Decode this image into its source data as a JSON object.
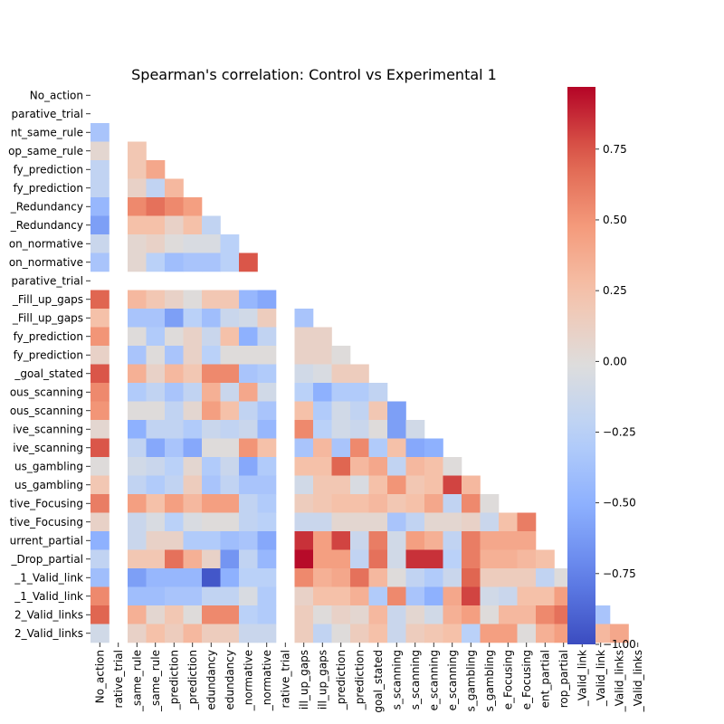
{
  "chart_data": {
    "type": "heatmap",
    "title": "Spearman's correlation: Control vs Experimental 1",
    "mask": "upper-triangle-including-diagonal",
    "colormap": "coolwarm",
    "vmin": -1.0,
    "vmax": 0.97,
    "row_labels": [
      "No_action",
      "parative_trial",
      "nt_same_rule",
      "op_same_rule",
      "fy_prediction",
      "fy_prediction",
      "_Redundancy",
      "_Redundancy",
      "on_normative",
      "on_normative",
      "parative_trial",
      "_Fill_up_gaps",
      "_Fill_up_gaps",
      "fy_prediction",
      "fy_prediction",
      "_goal_stated",
      "ous_scanning",
      "ous_scanning",
      "ive_scanning",
      "ive_scanning",
      "us_gambling",
      "us_gambling",
      "tive_Focusing",
      "tive_Focusing",
      "urrent_partial",
      "_Drop_partial",
      "_1_Valid_link",
      "_1_Valid_link",
      "2_Valid_links",
      "2_Valid_links"
    ],
    "col_labels": [
      "No_action",
      "rative_trial",
      "_same_rule",
      "_same_rule",
      "_prediction",
      "_prediction",
      "edundancy",
      "edundancy",
      "_normative",
      "_normative",
      "rative_trial",
      "ill_up_gaps",
      "ill_up_gaps",
      "_prediction",
      "_prediction",
      "goal_stated",
      "s_scanning",
      "s_scanning",
      "e_scanning",
      "e_scanning",
      "s_gambling",
      "s_gambling",
      "e_Focusing",
      "e_Focusing",
      "ent_partial",
      "rop_partial",
      "_Valid_link",
      "_Valid_link",
      "_Valid_links",
      "_Valid_links"
    ],
    "colorbar": {
      "ticks": [
        0.75,
        0.5,
        0.25,
        0.0,
        -0.25,
        -0.5,
        -0.75,
        -1.0
      ],
      "tick_labels": [
        "0.75",
        "0.50",
        "0.25",
        "0.00",
        "−0.25",
        "−0.50",
        "−0.75",
        "−1.00"
      ]
    },
    "matrix": [
      [],
      [
        null
      ],
      [
        -0.35,
        null
      ],
      [
        0.05,
        null,
        0.2
      ],
      [
        -0.2,
        null,
        0.2,
        0.4
      ],
      [
        -0.2,
        null,
        0.1,
        -0.2,
        0.3
      ],
      [
        -0.45,
        null,
        0.55,
        0.65,
        0.55,
        0.45
      ],
      [
        -0.6,
        null,
        0.25,
        0.25,
        0.1,
        0.25,
        -0.2
      ],
      [
        -0.15,
        null,
        0.05,
        0.1,
        0.0,
        -0.05,
        -0.05,
        -0.25
      ],
      [
        -0.35,
        null,
        0.05,
        -0.25,
        -0.4,
        -0.35,
        -0.35,
        -0.25,
        0.75
      ],
      [
        null,
        null,
        null,
        null,
        null,
        null,
        null,
        null,
        null,
        null
      ],
      [
        0.7,
        null,
        0.3,
        0.2,
        0.1,
        0.0,
        0.2,
        0.2,
        -0.45,
        -0.55,
        null
      ],
      [
        0.25,
        null,
        -0.35,
        -0.35,
        -0.6,
        -0.25,
        -0.4,
        -0.15,
        -0.1,
        0.15,
        null,
        -0.35
      ],
      [
        0.5,
        null,
        0.0,
        -0.3,
        0.0,
        0.1,
        -0.15,
        0.25,
        -0.5,
        -0.2,
        null,
        0.1,
        0.1
      ],
      [
        0.1,
        null,
        -0.35,
        0.0,
        -0.35,
        0.1,
        -0.25,
        0.0,
        0.0,
        0.0,
        null,
        0.1,
        0.1,
        0.0
      ],
      [
        0.75,
        null,
        0.35,
        0.1,
        0.3,
        0.2,
        0.55,
        0.55,
        -0.35,
        -0.3,
        null,
        -0.1,
        -0.05,
        0.15,
        0.15
      ],
      [
        0.55,
        null,
        -0.3,
        -0.2,
        -0.35,
        -0.2,
        0.35,
        -0.15,
        0.4,
        -0.1,
        null,
        -0.25,
        -0.5,
        -0.3,
        -0.3,
        -0.2
      ],
      [
        0.5,
        null,
        0.0,
        0.0,
        -0.2,
        0.05,
        0.45,
        0.25,
        -0.2,
        -0.35,
        null,
        0.25,
        -0.3,
        -0.1,
        -0.2,
        0.2,
        -0.6
      ],
      [
        0.05,
        null,
        -0.5,
        -0.2,
        -0.2,
        -0.3,
        -0.15,
        -0.2,
        -0.15,
        -0.45,
        null,
        0.55,
        -0.25,
        -0.1,
        -0.15,
        0.0,
        -0.6,
        -0.1
      ],
      [
        0.75,
        null,
        -0.2,
        -0.55,
        -0.35,
        -0.55,
        0.0,
        0.0,
        0.5,
        0.25,
        null,
        -0.35,
        0.3,
        -0.35,
        0.55,
        -0.3,
        0.25,
        -0.55,
        -0.5
      ],
      [
        0.0,
        null,
        -0.1,
        -0.15,
        -0.25,
        0.05,
        -0.3,
        -0.15,
        -0.55,
        -0.3,
        null,
        0.25,
        0.25,
        0.7,
        0.3,
        0.4,
        -0.2,
        0.3,
        0.25,
        0.0
      ],
      [
        0.2,
        null,
        -0.2,
        -0.3,
        -0.2,
        0.15,
        -0.35,
        -0.2,
        -0.35,
        -0.35,
        null,
        -0.1,
        0.2,
        0.2,
        -0.05,
        0.25,
        0.5,
        0.2,
        0.25,
        0.8,
        0.3
      ],
      [
        0.6,
        null,
        0.45,
        0.25,
        0.45,
        0.3,
        0.45,
        0.45,
        -0.2,
        -0.3,
        null,
        0.15,
        0.2,
        0.25,
        0.25,
        0.3,
        0.2,
        0.25,
        0.4,
        -0.2,
        0.55,
        0.0
      ],
      [
        0.1,
        null,
        -0.15,
        -0.05,
        -0.25,
        -0.05,
        0.0,
        0.0,
        -0.2,
        -0.25,
        null,
        -0.15,
        -0.15,
        0.05,
        0.05,
        0.05,
        -0.35,
        -0.2,
        0.05,
        0.05,
        0.1,
        -0.15,
        0.25,
        0.6
      ],
      [
        -0.5,
        null,
        -0.15,
        0.1,
        0.1,
        -0.3,
        -0.3,
        -0.4,
        -0.35,
        -0.55,
        null,
        0.85,
        0.45,
        0.8,
        -0.15,
        0.6,
        -0.1,
        0.45,
        0.35,
        -0.2,
        0.6,
        0.4,
        0.4,
        0.4
      ],
      [
        -0.2,
        null,
        0.2,
        0.2,
        0.65,
        0.35,
        0.1,
        -0.65,
        -0.2,
        -0.45,
        null,
        0.95,
        0.45,
        0.45,
        -0.2,
        0.65,
        -0.1,
        0.85,
        0.85,
        -0.25,
        0.6,
        0.35,
        0.35,
        0.3,
        0.25
      ],
      [
        -0.4,
        null,
        -0.6,
        -0.45,
        -0.45,
        -0.45,
        -0.95,
        -0.5,
        -0.25,
        -0.25,
        null,
        0.55,
        0.35,
        0.4,
        0.65,
        0.3,
        0.0,
        -0.2,
        -0.3,
        -0.15,
        0.7,
        0.15,
        0.15,
        0.15,
        -0.2,
        0.0
      ],
      [
        0.55,
        null,
        -0.4,
        -0.4,
        -0.35,
        -0.35,
        -0.2,
        -0.2,
        -0.05,
        -0.3,
        null,
        0.1,
        0.25,
        0.25,
        0.35,
        -0.3,
        0.55,
        -0.35,
        -0.5,
        0.4,
        0.8,
        -0.1,
        -0.15,
        0.25,
        0.25,
        0.45
      ],
      [
        0.7,
        null,
        0.35,
        0.05,
        0.2,
        0.0,
        0.55,
        0.55,
        -0.25,
        -0.3,
        null,
        0.15,
        0.0,
        0.1,
        0.05,
        0.3,
        -0.15,
        0.05,
        -0.1,
        0.35,
        0.45,
        0.0,
        0.3,
        0.3,
        0.55,
        0.65,
        0.2,
        -0.35
      ],
      [
        -0.1,
        null,
        0.1,
        0.25,
        0.15,
        0.3,
        0.15,
        0.15,
        -0.15,
        -0.15,
        null,
        0.15,
        -0.2,
        0.0,
        0.15,
        0.25,
        -0.15,
        0.15,
        0.2,
        0.25,
        -0.25,
        0.45,
        0.45,
        0.0,
        0.35,
        0.45,
        0.25,
        0.3,
        0.4
      ]
    ]
  }
}
